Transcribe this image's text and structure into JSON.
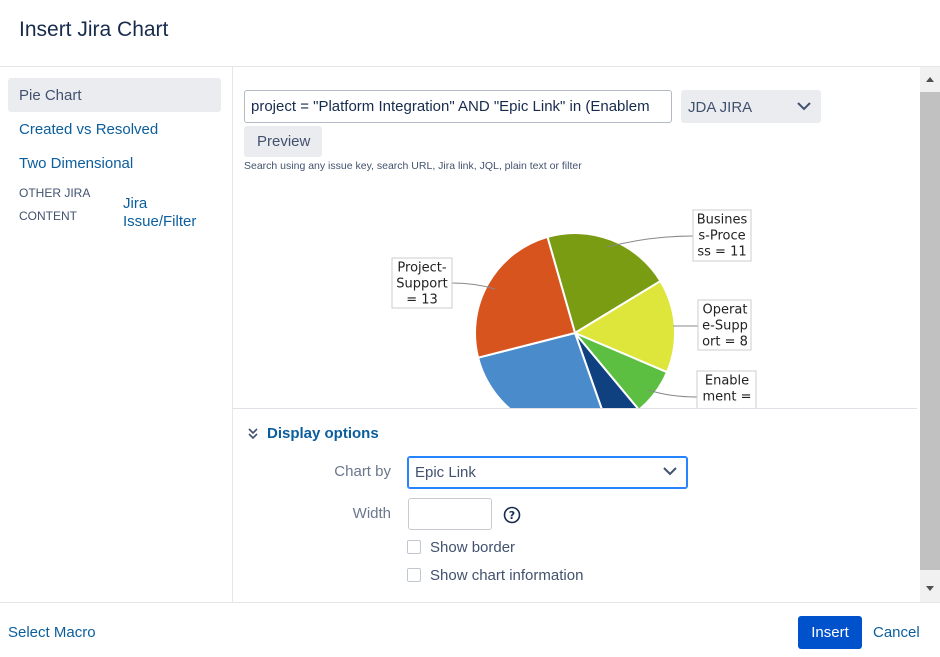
{
  "header": {
    "title": "Insert Jira Chart"
  },
  "sidebar": {
    "items": [
      "Pie Chart",
      "Created vs Resolved",
      "Two Dimensional"
    ],
    "other_heading": "OTHER JIRA CONTENT",
    "other_link": "Jira Issue/Filter"
  },
  "search": {
    "query": "project = \"Platform Integration\" AND \"Epic Link\" in (Enablem",
    "server": "JDA JIRA",
    "preview_button": "Preview",
    "hint": "Search using any issue key, search URL, Jira link, JQL, plain text or filter"
  },
  "chart_data": {
    "type": "pie",
    "slices": [
      {
        "value": 11,
        "color": "#7a9c12",
        "label": [
          "Busines",
          "s-Proce",
          "ss = 11"
        ]
      },
      {
        "value": 8,
        "color": "#dfe63b",
        "label": [
          "Operat",
          "e-Supp",
          "ort = 8"
        ]
      },
      {
        "value": 4,
        "color": "#5dbf42",
        "label": [
          "Enable",
          "ment ="
        ]
      },
      {
        "value": 3,
        "color": "#0f4181"
      },
      {
        "value": 14,
        "color": "#4a8ccb"
      },
      {
        "value": 13,
        "color": "#d8541f",
        "label": [
          "Project-",
          "Support",
          "= 13"
        ]
      }
    ]
  },
  "display_options": {
    "title": "Display options",
    "chart_by_label": "Chart by",
    "chart_by_value": "Epic Link",
    "width_label": "Width",
    "show_border": "Show border",
    "show_chart_information": "Show chart information"
  },
  "footer": {
    "select_macro": "Select Macro",
    "insert": "Insert",
    "cancel": "Cancel"
  }
}
